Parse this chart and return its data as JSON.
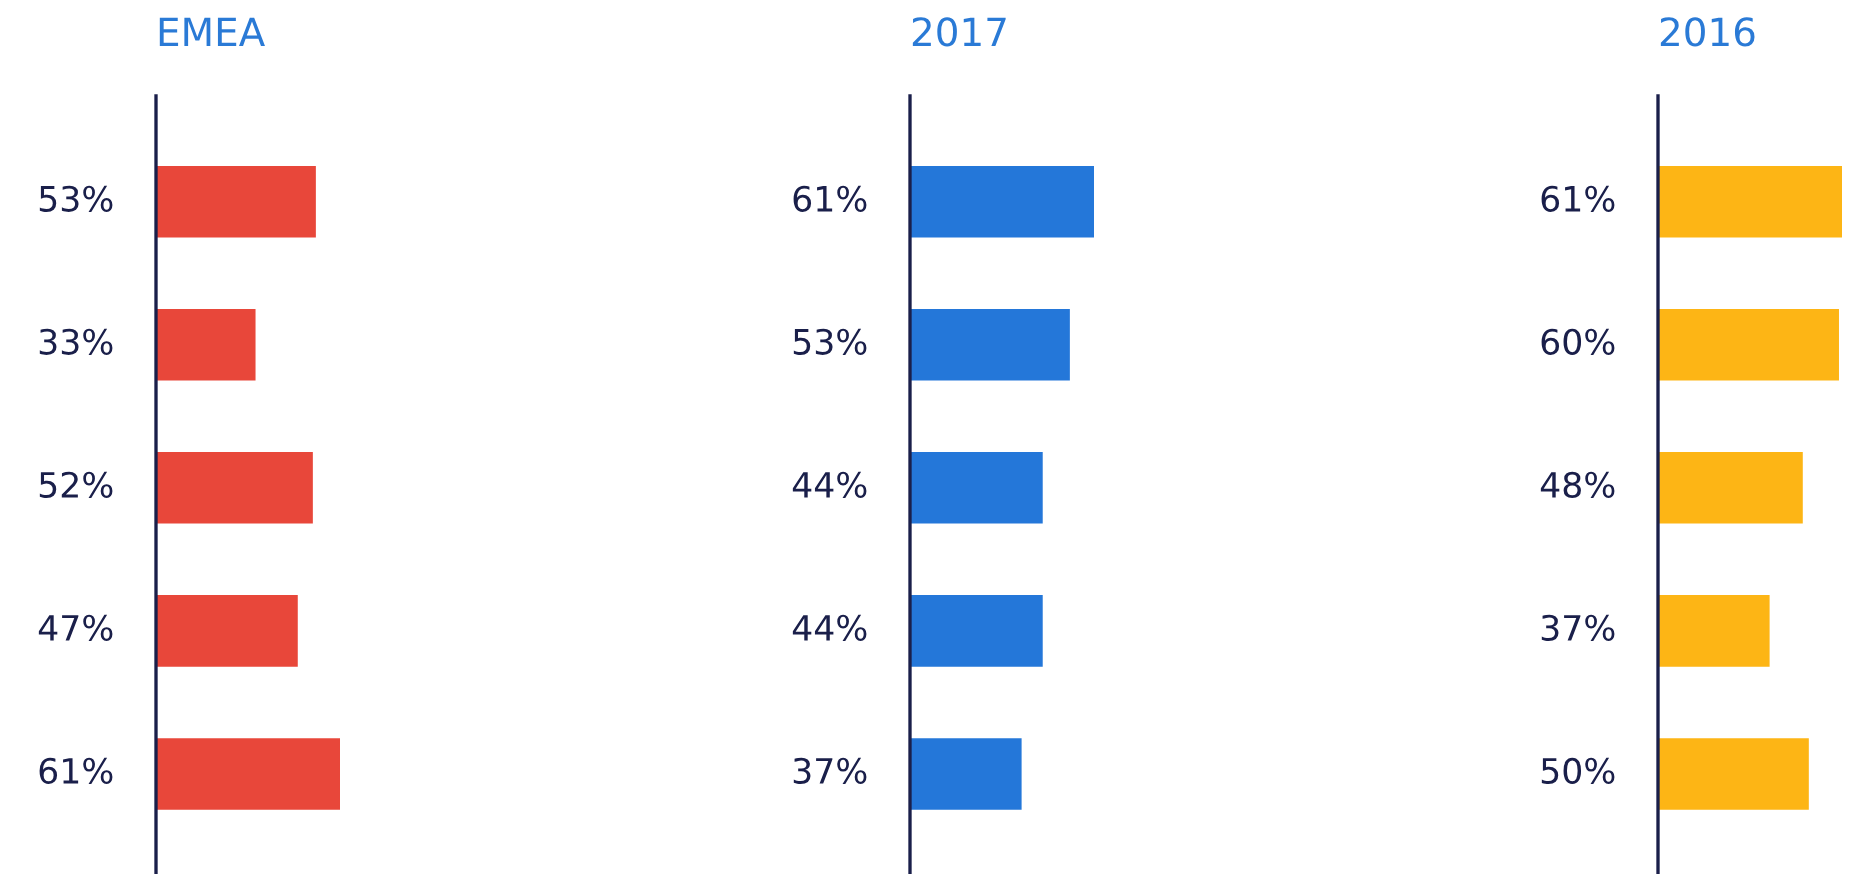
{
  "chart_data": [
    {
      "type": "bar",
      "orientation": "horizontal",
      "title": "EMEA",
      "categories": [
        null,
        null,
        null,
        null,
        null
      ],
      "values": [
        53,
        33,
        52,
        47,
        61
      ],
      "value_labels": [
        "53%",
        "33%",
        "52%",
        "47%",
        "61%"
      ],
      "color": "#e8473a"
    },
    {
      "type": "bar",
      "orientation": "horizontal",
      "title": "2017",
      "categories": [
        null,
        null,
        null,
        null,
        null
      ],
      "values": [
        61,
        53,
        44,
        44,
        37
      ],
      "value_labels": [
        "61%",
        "53%",
        "44%",
        "44%",
        "37%"
      ],
      "color": "#2477d9"
    },
    {
      "type": "bar",
      "orientation": "horizontal",
      "title": "2016",
      "categories": [
        null,
        null,
        null,
        null,
        null
      ],
      "values": [
        61,
        60,
        48,
        37,
        50
      ],
      "value_labels": [
        "61%",
        "60%",
        "48%",
        "37%",
        "50%"
      ],
      "color": "#fdb515"
    }
  ]
}
